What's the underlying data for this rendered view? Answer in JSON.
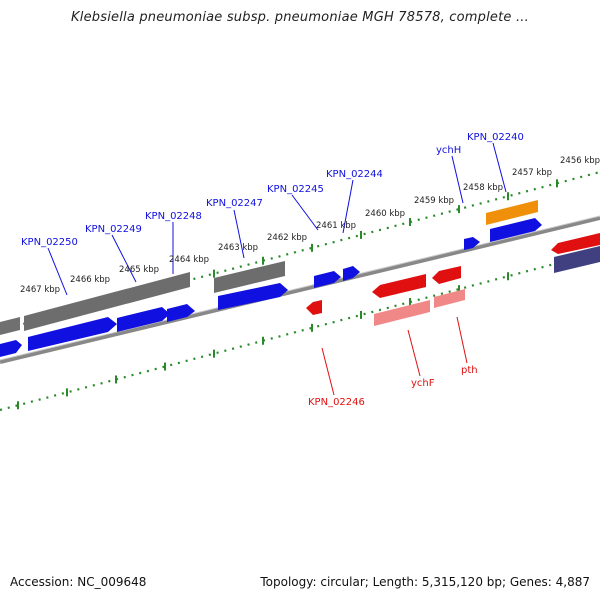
{
  "title": "Klebsiella pneumoniae subsp. pneumoniae MGH 78578, complete ...",
  "footer": {
    "accession": "Accession: NC_009648",
    "summary": "Topology: circular; Length: 5,315,120 bp; Genes: 4,887"
  },
  "colors": {
    "forward": "#1010e0",
    "reverse": "#e01010",
    "reverse_light": "#f08888",
    "gray": "#707070",
    "orange": "#f0900a",
    "purple": "#404080",
    "ticks": "#2a8a2a",
    "backbone": "#888888"
  },
  "ticks_upper": [
    "2456 kbp",
    "2457 kbp",
    "2458 kbp",
    "2459 kbp",
    "2460 kbp",
    "2461 kbp",
    "2462 kbp",
    "2463 kbp",
    "2464 kbp",
    "2465 kbp",
    "2466 kbp",
    "2467 kbp"
  ],
  "genes_top": [
    "KPN_02240",
    "ychH",
    "KPN_02244",
    "KPN_02245",
    "KPN_02247",
    "KPN_02248",
    "KPN_02249",
    "KPN_02250"
  ],
  "genes_bottom": [
    "KPN_02246",
    "ychF",
    "pth"
  ]
}
